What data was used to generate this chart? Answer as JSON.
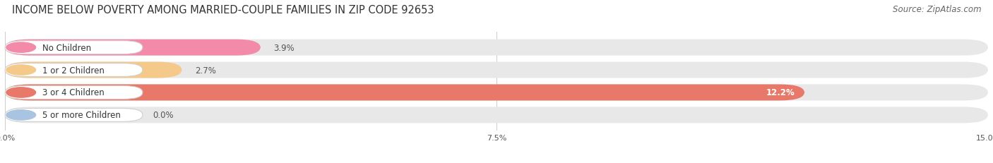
{
  "title": "INCOME BELOW POVERTY AMONG MARRIED-COUPLE FAMILIES IN ZIP CODE 92653",
  "source": "Source: ZipAtlas.com",
  "categories": [
    "No Children",
    "1 or 2 Children",
    "3 or 4 Children",
    "5 or more Children"
  ],
  "values": [
    3.9,
    2.7,
    12.2,
    0.0
  ],
  "bar_colors": [
    "#f48aaa",
    "#f5c98a",
    "#e8796a",
    "#a8c4e0"
  ],
  "value_label_inside": [
    false,
    false,
    true,
    false
  ],
  "xlim": [
    0,
    15.0
  ],
  "xticks": [
    0.0,
    7.5,
    15.0
  ],
  "xticklabels": [
    "0.0%",
    "7.5%",
    "15.0%"
  ],
  "title_fontsize": 10.5,
  "source_fontsize": 8.5,
  "bar_height": 0.72,
  "bar_gap": 1.0,
  "background_color": "#ffffff",
  "bg_bar_color": "#e8e8e8",
  "pill_border_color": "#d0d0d0",
  "grid_color": "#cccccc",
  "value_font_size": 8.5,
  "label_font_size": 8.5
}
